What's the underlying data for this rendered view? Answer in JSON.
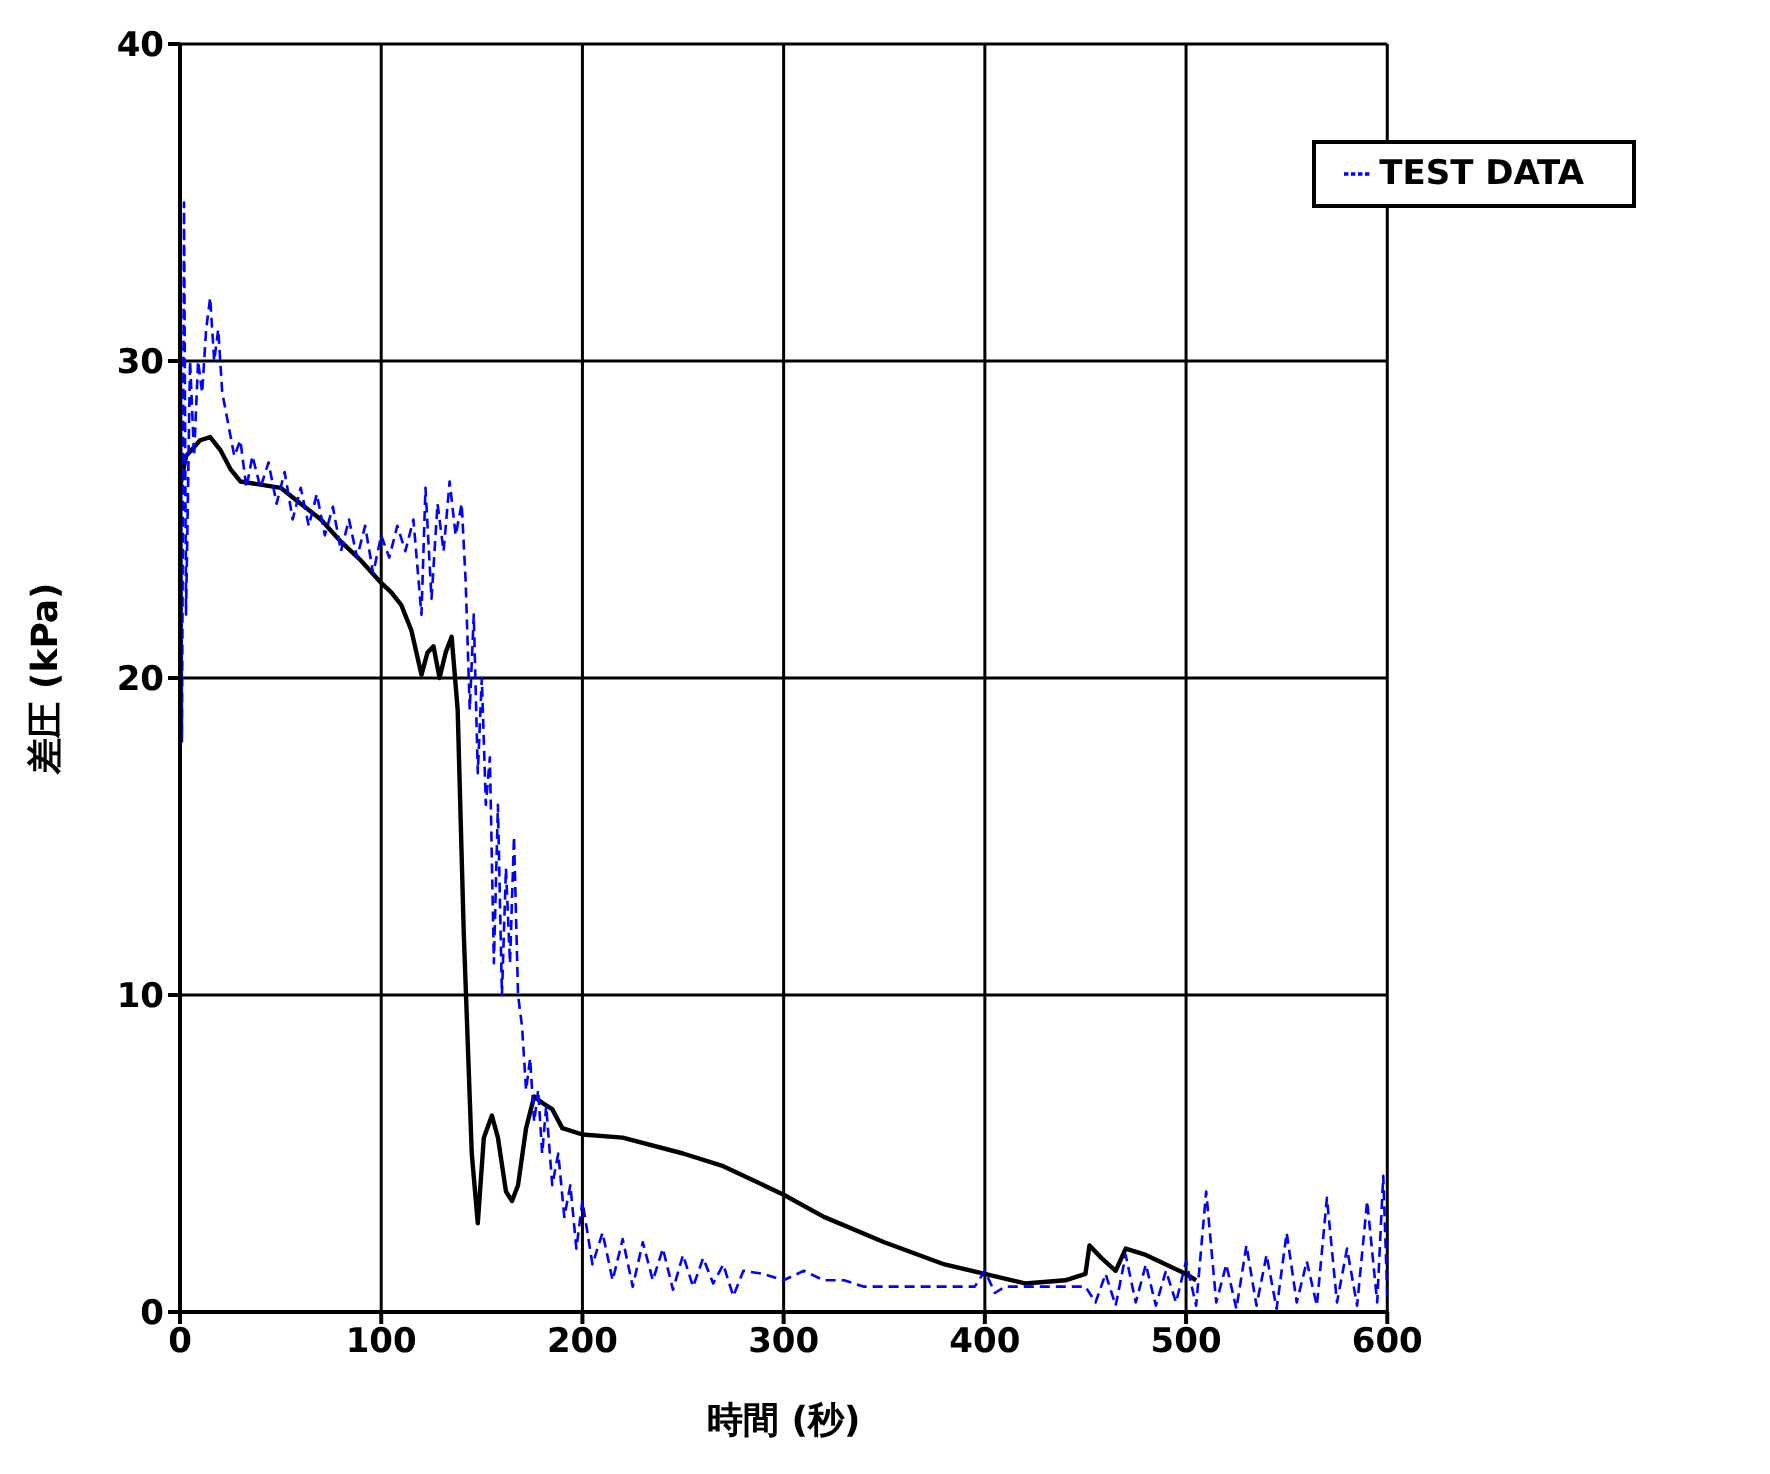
{
  "chart_data": {
    "type": "line",
    "xlabel": "時間 (秒)",
    "ylabel": "差圧 (kPa)",
    "xlim": [
      0,
      600
    ],
    "ylim": [
      0,
      40
    ],
    "xticks": [
      0,
      100,
      200,
      300,
      400,
      500,
      600
    ],
    "yticks": [
      0,
      10,
      20,
      30,
      40
    ],
    "grid": true,
    "legend": "top right",
    "marker": "none",
    "series": [
      {
        "color": "#000000",
        "line_style": "solid",
        "x": [
          0,
          3,
          10,
          15,
          20,
          25,
          30,
          40,
          50,
          60,
          70,
          80,
          90,
          100,
          105,
          110,
          115,
          120,
          123,
          126,
          129,
          132,
          135,
          138,
          141,
          145,
          148,
          151,
          155,
          158,
          162,
          165,
          168,
          172,
          176,
          180,
          185,
          190,
          200,
          220,
          250,
          270,
          300,
          320,
          350,
          380,
          400,
          420,
          440,
          450,
          452,
          458,
          465,
          470,
          480,
          490,
          500,
          505
        ],
        "values": [
          26,
          27,
          27.5,
          27.6,
          27.2,
          26.6,
          26.2,
          26.1,
          26,
          25.5,
          25,
          24.3,
          23.7,
          23,
          22.7,
          22.3,
          21.5,
          20.1,
          20.8,
          21,
          20,
          20.8,
          21.3,
          19,
          12,
          5,
          2.8,
          5.5,
          6.2,
          5.5,
          3.8,
          3.5,
          4,
          5.8,
          6.8,
          6.6,
          6.4,
          5.8,
          5.6,
          5.5,
          5,
          4.6,
          3.7,
          3,
          2.2,
          1.5,
          1.2,
          0.9,
          1,
          1.2,
          2.1,
          1.7,
          1.3,
          2,
          1.8,
          1.5,
          1.2,
          1
        ]
      },
      {
        "name": "TEST DATA",
        "color": "#0000ff",
        "line_style": "dashed",
        "x": [
          0,
          1,
          2,
          3,
          5,
          7,
          9,
          11,
          13,
          15,
          17,
          19,
          21,
          24,
          27,
          30,
          33,
          36,
          40,
          44,
          48,
          52,
          56,
          60,
          64,
          68,
          72,
          76,
          80,
          84,
          88,
          92,
          96,
          100,
          104,
          108,
          112,
          116,
          120,
          122,
          125,
          128,
          131,
          134,
          137,
          140,
          142,
          144,
          146,
          148,
          150,
          152,
          154,
          156,
          158,
          160,
          162,
          164,
          166,
          168,
          170,
          172,
          174,
          176,
          178,
          180,
          182,
          185,
          188,
          191,
          194,
          197,
          200,
          205,
          210,
          215,
          220,
          225,
          230,
          235,
          240,
          245,
          250,
          255,
          260,
          265,
          270,
          275,
          280,
          290,
          300,
          310,
          320,
          330,
          340,
          360,
          380,
          395,
          400,
          405,
          410,
          440,
          450,
          455,
          460,
          465,
          470,
          475,
          480,
          485,
          490,
          495,
          500,
          505,
          510,
          515,
          520,
          525,
          530,
          535,
          540,
          545,
          550,
          555,
          560,
          565,
          570,
          575,
          580,
          585,
          590,
          595,
          598,
          600
        ],
        "values": [
          40,
          18,
          35,
          22,
          30,
          27,
          30,
          29,
          31,
          32,
          30,
          31,
          29,
          28,
          27,
          27.5,
          26,
          27,
          26,
          26.8,
          25.5,
          26.5,
          25,
          26,
          24.8,
          25.8,
          24.5,
          25.4,
          24,
          25,
          23.8,
          24.8,
          23.3,
          24.5,
          23.8,
          24.8,
          24,
          25,
          22,
          26,
          22.5,
          25.5,
          24,
          26.2,
          24.5,
          25.5,
          23,
          19,
          22,
          17,
          20,
          16,
          17.5,
          11,
          16,
          10,
          14,
          11,
          15,
          10,
          9,
          7,
          8,
          6,
          7,
          5,
          6.5,
          4,
          5,
          3,
          4,
          2,
          3.5,
          1.5,
          2.5,
          1,
          2.3,
          0.8,
          2.2,
          1,
          2,
          0.7,
          1.8,
          0.8,
          1.7,
          0.9,
          1.5,
          0.5,
          1.3,
          1.2,
          1,
          1.3,
          1,
          1,
          0.8,
          0.8,
          0.8,
          0.8,
          1.3,
          0.6,
          0.8,
          0.8,
          0.8,
          0.3,
          1.2,
          0.2,
          1.8,
          0.3,
          1.5,
          0.2,
          1.3,
          0.3,
          1.6,
          0.2,
          3.8,
          0.3,
          1.5,
          0.1,
          2.1,
          0.2,
          1.8,
          0.1,
          2.5,
          0.3,
          1.6,
          0.2,
          3.6,
          0.3,
          2,
          0.2,
          3.5,
          0.3,
          4.3,
          0.5
        ]
      }
    ]
  }
}
